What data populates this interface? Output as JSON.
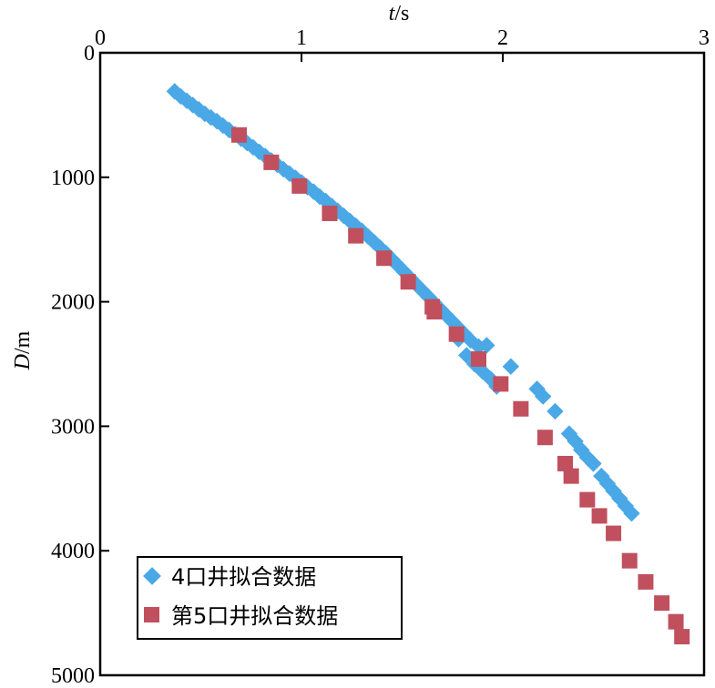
{
  "chart_data": {
    "type": "scatter",
    "xlabel_var": "t",
    "xlabel_unit": "/s",
    "ylabel_var": "D",
    "ylabel_unit": "/m",
    "x_axis_position": "top",
    "y_inverted": true,
    "xlim": [
      0,
      3
    ],
    "ylim": [
      0,
      5000
    ],
    "x_ticks": [
      "0",
      "1",
      "2",
      "3"
    ],
    "y_ticks": [
      "0",
      "1000",
      "2000",
      "3000",
      "4000",
      "5000"
    ],
    "legend_position": "bottom-left",
    "series": [
      {
        "name": "4口井拟合数据",
        "marker": "diamond",
        "color": "#4aa8e6",
        "points": [
          [
            0.37,
            310
          ],
          [
            0.4,
            350
          ],
          [
            0.43,
            385
          ],
          [
            0.46,
            420
          ],
          [
            0.49,
            455
          ],
          [
            0.52,
            490
          ],
          [
            0.55,
            520
          ],
          [
            0.58,
            550
          ],
          [
            0.61,
            585
          ],
          [
            0.64,
            620
          ],
          [
            0.67,
            655
          ],
          [
            0.7,
            690
          ],
          [
            0.73,
            725
          ],
          [
            0.76,
            760
          ],
          [
            0.79,
            795
          ],
          [
            0.82,
            830
          ],
          [
            0.85,
            865
          ],
          [
            0.88,
            900
          ],
          [
            0.91,
            935
          ],
          [
            0.94,
            970
          ],
          [
            0.97,
            1005
          ],
          [
            1.0,
            1040
          ],
          [
            1.03,
            1080
          ],
          [
            1.06,
            1115
          ],
          [
            1.09,
            1155
          ],
          [
            1.12,
            1190
          ],
          [
            1.15,
            1230
          ],
          [
            1.18,
            1270
          ],
          [
            1.21,
            1310
          ],
          [
            1.24,
            1350
          ],
          [
            1.27,
            1390
          ],
          [
            1.3,
            1430
          ],
          [
            1.33,
            1475
          ],
          [
            1.36,
            1520
          ],
          [
            1.39,
            1565
          ],
          [
            1.42,
            1610
          ],
          [
            1.45,
            1660
          ],
          [
            1.48,
            1710
          ],
          [
            1.51,
            1760
          ],
          [
            1.54,
            1810
          ],
          [
            1.57,
            1860
          ],
          [
            1.6,
            1910
          ],
          [
            1.63,
            1960
          ],
          [
            1.66,
            2010
          ],
          [
            1.69,
            2060
          ],
          [
            1.72,
            2110
          ],
          [
            1.75,
            2160
          ],
          [
            1.78,
            2210
          ],
          [
            1.81,
            2260
          ],
          [
            1.84,
            2310
          ],
          [
            1.88,
            2360
          ],
          [
            1.92,
            2350
          ],
          [
            1.78,
            2300
          ],
          [
            1.82,
            2430
          ],
          [
            1.86,
            2500
          ],
          [
            1.9,
            2560
          ],
          [
            1.94,
            2620
          ],
          [
            1.97,
            2680
          ],
          [
            2.04,
            2520
          ],
          [
            2.17,
            2700
          ],
          [
            2.2,
            2760
          ],
          [
            2.26,
            2880
          ],
          [
            2.33,
            3060
          ],
          [
            2.36,
            3120
          ],
          [
            2.39,
            3190
          ],
          [
            2.42,
            3250
          ],
          [
            2.45,
            3300
          ],
          [
            2.49,
            3400
          ],
          [
            2.52,
            3460
          ],
          [
            2.55,
            3520
          ],
          [
            2.58,
            3580
          ],
          [
            2.61,
            3640
          ],
          [
            2.64,
            3700
          ]
        ]
      },
      {
        "name": "第5口井拟合数据",
        "marker": "square",
        "color": "#c0505e",
        "points": [
          [
            0.69,
            660
          ],
          [
            0.85,
            880
          ],
          [
            0.99,
            1070
          ],
          [
            1.14,
            1290
          ],
          [
            1.27,
            1470
          ],
          [
            1.41,
            1650
          ],
          [
            1.53,
            1840
          ],
          [
            1.65,
            2040
          ],
          [
            1.66,
            2080
          ],
          [
            1.77,
            2260
          ],
          [
            1.88,
            2460
          ],
          [
            1.99,
            2660
          ],
          [
            2.09,
            2860
          ],
          [
            2.21,
            3090
          ],
          [
            2.31,
            3300
          ],
          [
            2.34,
            3400
          ],
          [
            2.42,
            3590
          ],
          [
            2.48,
            3720
          ],
          [
            2.55,
            3860
          ],
          [
            2.63,
            4080
          ],
          [
            2.71,
            4250
          ],
          [
            2.79,
            4420
          ],
          [
            2.86,
            4570
          ],
          [
            2.89,
            4690
          ]
        ]
      }
    ]
  }
}
